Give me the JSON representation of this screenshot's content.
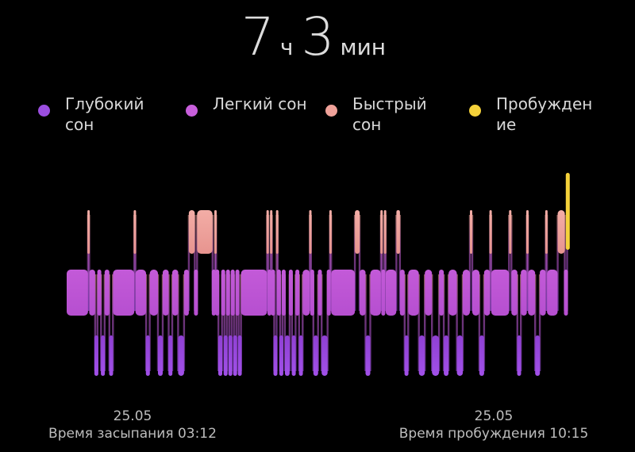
{
  "duration": {
    "hours": "7",
    "hours_unit": "ч",
    "minutes": "3",
    "minutes_unit": "мин"
  },
  "legend": [
    {
      "label": "Глубокий сон",
      "color": "#9b4ee0"
    },
    {
      "label": "Легкий сон",
      "color": "#c85fdc"
    },
    {
      "label": "Быстрый сон",
      "color": "#f0a29a"
    },
    {
      "label": "Пробуждение",
      "color": "#f5d23a"
    }
  ],
  "footer": {
    "sleep_date": "25.05",
    "sleep_label": "Время засыпания 03:12",
    "wake_date": "25.05",
    "wake_label": "Время пробуждения 10:15"
  },
  "chart_data": {
    "type": "bar",
    "title": "",
    "xlabel": "",
    "ylabel": "",
    "levels": [
      "Пробуждение",
      "Быстрый сон",
      "Легкий сон",
      "Глубокий сон"
    ],
    "x_range": [
      "03:12",
      "10:15"
    ],
    "segments": [
      {
        "stage": "Легкий сон",
        "start": "03:12",
        "end": "03:30"
      },
      {
        "stage": "Быстрый сон",
        "start": "03:30",
        "end": "03:31"
      },
      {
        "stage": "Легкий сон",
        "start": "03:31",
        "end": "03:36"
      },
      {
        "stage": "Глубокий сон",
        "start": "03:36",
        "end": "03:38"
      },
      {
        "stage": "Легкий сон",
        "start": "03:38",
        "end": "03:41"
      },
      {
        "stage": "Глубокий сон",
        "start": "03:41",
        "end": "03:44"
      },
      {
        "stage": "Легкий сон",
        "start": "03:44",
        "end": "03:48"
      },
      {
        "stage": "Глубокий сон",
        "start": "03:48",
        "end": "03:51"
      },
      {
        "stage": "Легкий сон",
        "start": "03:51",
        "end": "04:09"
      },
      {
        "stage": "Быстрый сон",
        "start": "04:09",
        "end": "04:10"
      },
      {
        "stage": "Легкий сон",
        "start": "04:10",
        "end": "04:19"
      },
      {
        "stage": "Глубокий сон",
        "start": "04:19",
        "end": "04:22"
      },
      {
        "stage": "Легкий сон",
        "start": "04:22",
        "end": "04:29"
      },
      {
        "stage": "Глубокий сон",
        "start": "04:29",
        "end": "04:33"
      },
      {
        "stage": "Легкий сон",
        "start": "04:33",
        "end": "04:38"
      },
      {
        "stage": "Глубокий сон",
        "start": "04:38",
        "end": "04:41"
      },
      {
        "stage": "Легкий сон",
        "start": "04:41",
        "end": "04:46"
      },
      {
        "stage": "Глубокий сон",
        "start": "04:46",
        "end": "04:51"
      },
      {
        "stage": "Легкий сон",
        "start": "04:51",
        "end": "04:55"
      },
      {
        "stage": "Быстрый сон",
        "start": "04:55",
        "end": "05:00"
      },
      {
        "stage": "Легкий сон",
        "start": "05:00",
        "end": "05:02"
      },
      {
        "stage": "Быстрый сон",
        "start": "05:02",
        "end": "05:15"
      },
      {
        "stage": "Легкий сон",
        "start": "05:15",
        "end": "05:17"
      },
      {
        "stage": "Быстрый сон",
        "start": "05:17",
        "end": "05:18"
      },
      {
        "stage": "Легкий сон",
        "start": "05:18",
        "end": "05:20"
      },
      {
        "stage": "Глубокий сон",
        "start": "05:20",
        "end": "05:23"
      },
      {
        "stage": "Легкий сон",
        "start": "05:23",
        "end": "05:25"
      },
      {
        "stage": "Глубокий сон",
        "start": "05:25",
        "end": "05:27"
      },
      {
        "stage": "Легкий сон",
        "start": "05:27",
        "end": "05:29"
      },
      {
        "stage": "Глубокий сон",
        "start": "05:29",
        "end": "05:31"
      },
      {
        "stage": "Легкий сон",
        "start": "05:31",
        "end": "05:33"
      },
      {
        "stage": "Глубокий сон",
        "start": "05:33",
        "end": "05:35"
      },
      {
        "stage": "Легкий сон",
        "start": "05:35",
        "end": "05:37"
      },
      {
        "stage": "Глубокий сон",
        "start": "05:37",
        "end": "05:39"
      },
      {
        "stage": "Легкий сон",
        "start": "05:39",
        "end": "06:01"
      },
      {
        "stage": "Быстрый сон",
        "start": "06:01",
        "end": "06:02"
      },
      {
        "stage": "Легкий сон",
        "start": "06:02",
        "end": "06:04"
      },
      {
        "stage": "Быстрый сон",
        "start": "06:04",
        "end": "06:05"
      },
      {
        "stage": "Легкий сон",
        "start": "06:05",
        "end": "06:07"
      },
      {
        "stage": "Глубокий сон",
        "start": "06:07",
        "end": "06:09"
      },
      {
        "stage": "Быстрый сон",
        "start": "06:09",
        "end": "06:10"
      },
      {
        "stage": "Легкий сон",
        "start": "06:10",
        "end": "06:12"
      },
      {
        "stage": "Глубокий сон",
        "start": "06:12",
        "end": "06:14"
      },
      {
        "stage": "Легкий сон",
        "start": "06:14",
        "end": "06:16"
      },
      {
        "stage": "Глубокий сон",
        "start": "06:16",
        "end": "06:20"
      },
      {
        "stage": "Легкий сон",
        "start": "06:20",
        "end": "06:22"
      },
      {
        "stage": "Глубокий сон",
        "start": "06:22",
        "end": "06:25"
      },
      {
        "stage": "Легкий сон",
        "start": "06:25",
        "end": "06:28"
      },
      {
        "stage": "Глубокий сон",
        "start": "06:28",
        "end": "06:31"
      },
      {
        "stage": "Легкий сон",
        "start": "06:31",
        "end": "06:37"
      },
      {
        "stage": "Быстрый сон",
        "start": "06:37",
        "end": "06:38"
      },
      {
        "stage": "Легкий сон",
        "start": "06:38",
        "end": "06:40"
      },
      {
        "stage": "Глубокий сон",
        "start": "06:40",
        "end": "06:44"
      },
      {
        "stage": "Легкий сон",
        "start": "06:44",
        "end": "06:47"
      },
      {
        "stage": "Глубокий сон",
        "start": "06:47",
        "end": "06:52"
      },
      {
        "stage": "Легкий сон",
        "start": "06:52",
        "end": "06:54"
      },
      {
        "stage": "Быстрый сон",
        "start": "06:54",
        "end": "06:55"
      },
      {
        "stage": "Легкий сон",
        "start": "06:55",
        "end": "07:15"
      },
      {
        "stage": "Быстрый сон",
        "start": "07:15",
        "end": "07:19"
      },
      {
        "stage": "Легкий сон",
        "start": "07:19",
        "end": "07:24"
      },
      {
        "stage": "Глубокий сон",
        "start": "07:24",
        "end": "07:28"
      },
      {
        "stage": "Легкий сон",
        "start": "07:28",
        "end": "07:37"
      },
      {
        "stage": "Быстрый сон",
        "start": "07:37",
        "end": "07:38"
      },
      {
        "stage": "Легкий сон",
        "start": "07:38",
        "end": "07:40"
      },
      {
        "stage": "Быстрый сон",
        "start": "07:40",
        "end": "07:41"
      },
      {
        "stage": "Легкий сон",
        "start": "07:41",
        "end": "07:50"
      },
      {
        "stage": "Быстрый сон",
        "start": "07:50",
        "end": "07:53"
      },
      {
        "stage": "Легкий сон",
        "start": "07:53",
        "end": "07:57"
      },
      {
        "stage": "Глубокий сон",
        "start": "07:57",
        "end": "08:00"
      },
      {
        "stage": "Легкий сон",
        "start": "08:00",
        "end": "08:09"
      },
      {
        "stage": "Глубокий сон",
        "start": "08:09",
        "end": "08:14"
      },
      {
        "stage": "Легкий сон",
        "start": "08:14",
        "end": "08:20"
      },
      {
        "stage": "Глубокий сон",
        "start": "08:20",
        "end": "08:26"
      },
      {
        "stage": "Легкий сон",
        "start": "08:26",
        "end": "08:30"
      },
      {
        "stage": "Глубокий сон",
        "start": "08:30",
        "end": "08:34"
      },
      {
        "stage": "Легкий сон",
        "start": "08:34",
        "end": "08:41"
      },
      {
        "stage": "Глубокий сон",
        "start": "08:41",
        "end": "08:46"
      },
      {
        "stage": "Легкий сон",
        "start": "08:46",
        "end": "08:52"
      },
      {
        "stage": "Быстрый сон",
        "start": "08:52",
        "end": "08:54"
      },
      {
        "stage": "Легкий сон",
        "start": "08:54",
        "end": "09:00"
      },
      {
        "stage": "Глубокий сон",
        "start": "09:00",
        "end": "09:04"
      },
      {
        "stage": "Легкий сон",
        "start": "09:04",
        "end": "09:09"
      },
      {
        "stage": "Быстрый сон",
        "start": "09:09",
        "end": "09:10"
      },
      {
        "stage": "Легкий сон",
        "start": "09:10",
        "end": "09:25"
      },
      {
        "stage": "Быстрый сон",
        "start": "09:25",
        "end": "09:27"
      },
      {
        "stage": "Легкий сон",
        "start": "09:27",
        "end": "09:32"
      },
      {
        "stage": "Глубокий сон",
        "start": "09:32",
        "end": "09:35"
      },
      {
        "stage": "Легкий сон",
        "start": "09:35",
        "end": "09:40"
      },
      {
        "stage": "Быстрый сон",
        "start": "09:40",
        "end": "09:41"
      },
      {
        "stage": "Легкий сон",
        "start": "09:41",
        "end": "09:47"
      },
      {
        "stage": "Глубокий сон",
        "start": "09:47",
        "end": "09:51"
      },
      {
        "stage": "Легкий сон",
        "start": "09:51",
        "end": "09:56"
      },
      {
        "stage": "Быстрый сон",
        "start": "09:56",
        "end": "09:57"
      },
      {
        "stage": "Легкий сон",
        "start": "09:57",
        "end": "10:06"
      },
      {
        "stage": "Быстрый сон",
        "start": "10:06",
        "end": "10:12"
      },
      {
        "stage": "Легкий сон",
        "start": "10:12",
        "end": "10:14"
      },
      {
        "stage": "Пробуждение",
        "start": "10:14",
        "end": "10:15"
      }
    ]
  }
}
